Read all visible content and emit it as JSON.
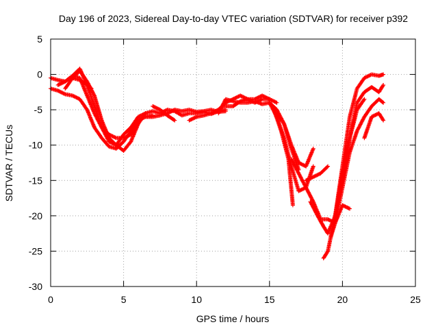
{
  "chart_data": {
    "type": "scatter",
    "title": "Day 196 of 2023, Sidereal Day-to-day VTEC variation (SDTVAR) for receiver p392",
    "xlabel": "GPS time / hours",
    "ylabel": "SDTVAR / TECUs",
    "xlim": [
      0,
      25
    ],
    "ylim": [
      -30,
      5
    ],
    "xticks": [
      0,
      5,
      10,
      15,
      20,
      25
    ],
    "yticks": [
      -30,
      -25,
      -20,
      -15,
      -10,
      -5,
      0,
      5
    ],
    "grid": true,
    "marker": "plus",
    "color": "#ff0000",
    "series": [
      {
        "x": [
          0.0,
          0.5,
          1.0,
          1.5,
          2.0,
          2.5,
          3.0,
          3.5,
          4.0,
          4.5,
          5.0,
          5.5,
          6.0,
          6.5,
          7.0
        ],
        "y": [
          -2.0,
          -2.3,
          -2.8,
          -3.0,
          -3.5,
          -5.0,
          -7.5,
          -9.0,
          -10.2,
          -10.5,
          -9.5,
          -8.0,
          -6.5,
          -6.0,
          -5.8
        ]
      },
      {
        "x": [
          0.0,
          0.5,
          1.0,
          1.5,
          2.0,
          2.5,
          3.0,
          3.5,
          4.0,
          4.5,
          5.0,
          5.5,
          6.0,
          6.5
        ],
        "y": [
          -0.5,
          -0.8,
          -1.0,
          -0.2,
          0.8,
          -1.5,
          -4.5,
          -7.5,
          -9.5,
          -10.0,
          -8.5,
          -7.5,
          -6.0,
          -5.5
        ]
      },
      {
        "x": [
          0.5,
          1.0,
          1.5,
          2.0,
          2.5,
          3.0,
          3.5,
          4.0,
          4.5,
          5.0,
          5.5,
          6.0,
          6.5
        ],
        "y": [
          -1.5,
          -1.0,
          -0.2,
          -0.5,
          -3.0,
          -5.5,
          -7.5,
          -8.5,
          -9.0,
          -9.0,
          -8.5,
          -7.0,
          -5.5
        ]
      },
      {
        "x": [
          1.0,
          1.5,
          2.0,
          2.5,
          3.0,
          3.5,
          4.0,
          4.5,
          5.0,
          5.5,
          6.0
        ],
        "y": [
          -2.0,
          -0.5,
          0.5,
          -1.0,
          -3.0,
          -6.5,
          -9.0,
          -10.0,
          -10.8,
          -9.5,
          -7.0
        ]
      },
      {
        "x": [
          1.5,
          2.0,
          2.5,
          2.8
        ],
        "y": [
          -0.5,
          -0.8,
          -1.5,
          -2.0
        ]
      },
      {
        "x": [
          6.5,
          7.0,
          7.5,
          8.0,
          8.5,
          9.0,
          9.5,
          10.0,
          10.5,
          11.0,
          11.5,
          12.0
        ],
        "y": [
          -5.5,
          -5.2,
          -5.5,
          -5.0,
          -5.2,
          -5.8,
          -5.5,
          -5.5,
          -5.3,
          -5.6,
          -5.2,
          -5.0
        ]
      },
      {
        "x": [
          6.5,
          7.0,
          7.5,
          8.0,
          8.5,
          9.0,
          9.5,
          10.0,
          10.5,
          11.0,
          11.5,
          12.0
        ],
        "y": [
          -6.0,
          -6.0,
          -5.8,
          -5.5,
          -5.0,
          -5.2,
          -5.0,
          -5.3,
          -5.2,
          -5.0,
          -5.3,
          -5.2
        ]
      },
      {
        "x": [
          7.0,
          7.5,
          8.0,
          8.5
        ],
        "y": [
          -4.5,
          -5.0,
          -5.8,
          -6.5
        ]
      },
      {
        "x": [
          9.5,
          10.0,
          10.5,
          11.0,
          11.5
        ],
        "y": [
          -6.5,
          -6.0,
          -5.8,
          -5.5,
          -5.0
        ]
      },
      {
        "x": [
          11.5,
          12.0,
          12.5,
          13.0,
          13.5,
          14.0,
          14.5,
          15.0
        ],
        "y": [
          -5.0,
          -4.0,
          -3.5,
          -3.0,
          -3.5,
          -4.0,
          -3.5,
          -3.5
        ]
      },
      {
        "x": [
          11.8,
          12.5,
          13.0,
          13.5,
          14.0,
          14.5,
          15.0,
          15.5
        ],
        "y": [
          -4.5,
          -4.5,
          -3.8,
          -3.5,
          -3.5,
          -3.0,
          -3.5,
          -4.0
        ]
      },
      {
        "x": [
          11.5,
          12.0,
          12.5,
          13.0,
          13.5,
          14.0,
          14.5,
          15.0,
          15.5
        ],
        "y": [
          -5.5,
          -3.5,
          -3.8,
          -4.0,
          -4.0,
          -3.8,
          -4.2,
          -4.0,
          -5.0
        ]
      },
      {
        "x": [
          15.0,
          15.5,
          16.0,
          16.5,
          17.0,
          17.5,
          18.0
        ],
        "y": [
          -4.0,
          -6.0,
          -9.0,
          -13.0,
          -16.5,
          -16.0,
          -13.0
        ]
      },
      {
        "x": [
          15.0,
          15.5,
          16.0,
          16.5,
          17.0,
          17.5,
          18.0
        ],
        "y": [
          -4.0,
          -5.0,
          -7.0,
          -10.0,
          -12.5,
          -13.0,
          -10.5
        ]
      },
      {
        "x": [
          15.3,
          15.8,
          16.3,
          16.6
        ],
        "y": [
          -5.0,
          -8.0,
          -12.0,
          -18.5
        ]
      },
      {
        "x": [
          15.5,
          16.0,
          16.5,
          17.0
        ],
        "y": [
          -5.5,
          -7.0,
          -10.5,
          -13.5
        ]
      },
      {
        "x": [
          16.5,
          17.0,
          17.5,
          18.0,
          18.5,
          19.0,
          19.5,
          20.0,
          20.5
        ],
        "y": [
          -12.0,
          -14.0,
          -16.0,
          -18.0,
          -20.5,
          -20.5,
          -21.0,
          -18.5,
          -19.0
        ]
      },
      {
        "x": [
          17.5,
          18.0,
          18.5,
          19.0
        ],
        "y": [
          -15.0,
          -14.5,
          -14.0,
          -13.0
        ]
      },
      {
        "x": [
          17.8,
          18.3,
          18.7,
          19.0,
          19.5,
          20.0,
          20.5,
          21.0,
          21.5
        ],
        "y": [
          -18.0,
          -20.0,
          -21.5,
          -22.5,
          -20.0,
          -15.0,
          -9.0,
          -5.0,
          -3.5
        ]
      },
      {
        "x": [
          18.7,
          19.0,
          19.5,
          20.0,
          20.5,
          21.0,
          21.5,
          22.0,
          22.5,
          22.8
        ],
        "y": [
          -26.0,
          -25.0,
          -20.0,
          -13.0,
          -6.0,
          -2.0,
          -0.5,
          0.0,
          -0.2,
          0.0
        ]
      },
      {
        "x": [
          19.5,
          20.0,
          20.5,
          21.0,
          21.5,
          22.0,
          22.5,
          22.8
        ],
        "y": [
          -20.0,
          -14.0,
          -9.0,
          -4.0,
          -2.5,
          -1.8,
          -2.5,
          -1.5
        ]
      },
      {
        "x": [
          19.2,
          19.5,
          20.0,
          20.5,
          21.0,
          21.5,
          22.0,
          22.5,
          22.8
        ],
        "y": [
          -23.0,
          -21.0,
          -16.0,
          -11.0,
          -8.0,
          -6.0,
          -4.5,
          -3.5,
          -4.0
        ]
      },
      {
        "x": [
          21.5,
          22.0,
          22.5,
          22.8
        ],
        "y": [
          -9.0,
          -6.0,
          -5.5,
          -6.5
        ]
      }
    ]
  }
}
